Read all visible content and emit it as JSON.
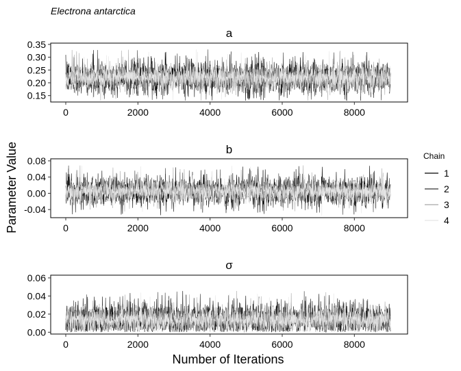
{
  "species_label": "Electrona antarctica",
  "chart_data": {
    "type": "line",
    "xlabel": "Number of Iterations",
    "ylabel": "Parameter Value",
    "legend": {
      "title": "Chain",
      "placement": "right",
      "entries": [
        {
          "name": "1",
          "color": "#000000"
        },
        {
          "name": "2",
          "color": "#333333"
        },
        {
          "name": "3",
          "color": "#a6a6a6"
        },
        {
          "name": "4",
          "color": "#e5e5e5"
        }
      ]
    },
    "panels": [
      {
        "title": "a",
        "xlim": [
          0,
          9000
        ],
        "ylim": [
          0.125,
          0.355
        ],
        "x_ticks": [
          {
            "v": 0,
            "label": "0"
          },
          {
            "v": 2000,
            "label": "2000"
          },
          {
            "v": 4000,
            "label": "4000"
          },
          {
            "v": 6000,
            "label": "6000"
          },
          {
            "v": 8000,
            "label": "8000"
          }
        ],
        "y_ticks": [
          {
            "v": 0.15,
            "label": "0.15"
          },
          {
            "v": 0.2,
            "label": "0.20"
          },
          {
            "v": 0.25,
            "label": "0.25"
          },
          {
            "v": 0.3,
            "label": "0.30"
          },
          {
            "v": 0.35,
            "label": "0.35"
          }
        ],
        "trace": {
          "iterations": 9000,
          "mean": 0.22,
          "sd": 0.028,
          "min": 0.13,
          "max": 0.34
        }
      },
      {
        "title": "b",
        "xlim": [
          0,
          9000
        ],
        "ylim": [
          -0.06,
          0.085
        ],
        "x_ticks": [
          {
            "v": 0,
            "label": "0"
          },
          {
            "v": 2000,
            "label": "2000"
          },
          {
            "v": 4000,
            "label": "4000"
          },
          {
            "v": 6000,
            "label": "6000"
          },
          {
            "v": 8000,
            "label": "8000"
          }
        ],
        "y_ticks": [
          {
            "v": -0.04,
            "label": "-0.04"
          },
          {
            "v": 0.0,
            "label": "0.00"
          },
          {
            "v": 0.04,
            "label": "0.04"
          },
          {
            "v": 0.08,
            "label": "0.08"
          }
        ],
        "trace": {
          "iterations": 9000,
          "mean": 0.005,
          "sd": 0.016,
          "min": -0.055,
          "max": 0.077
        }
      },
      {
        "title": "σ",
        "xlim": [
          0,
          9000
        ],
        "ylim": [
          -0.002,
          0.063
        ],
        "x_ticks": [
          {
            "v": 0,
            "label": "0"
          },
          {
            "v": 2000,
            "label": "2000"
          },
          {
            "v": 4000,
            "label": "4000"
          },
          {
            "v": 6000,
            "label": "6000"
          },
          {
            "v": 8000,
            "label": "8000"
          }
        ],
        "y_ticks": [
          {
            "v": 0.0,
            "label": "0.00"
          },
          {
            "v": 0.02,
            "label": "0.02"
          },
          {
            "v": 0.04,
            "label": "0.04"
          },
          {
            "v": 0.06,
            "label": "0.06"
          }
        ],
        "trace": {
          "iterations": 9000,
          "mean": 0.014,
          "sd": 0.008,
          "min": 0.0,
          "max": 0.06
        }
      }
    ]
  }
}
